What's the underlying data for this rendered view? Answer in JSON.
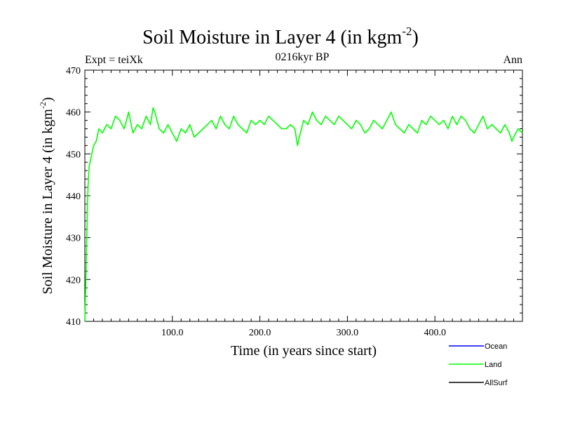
{
  "chart_data": {
    "type": "line",
    "title_main": "Soil Moisture in Layer 4 (in kgm",
    "title_sup": "-2",
    "title_close": ")",
    "subtitle_left": "Expt = teiXk",
    "subtitle_center": "0216kyr BP",
    "subtitle_right": "Ann",
    "xlabel": "Time (in years since start)",
    "ylabel_main": "Soil Moisture in Layer 4 (in kgm",
    "ylabel_sup": "-2",
    "ylabel_close": ")",
    "xlim": [
      0,
      500
    ],
    "ylim": [
      410,
      470
    ],
    "x_ticks": [
      100,
      200,
      300,
      400
    ],
    "x_tick_labels": [
      "100.0",
      "200.0",
      "300.0",
      "400.0"
    ],
    "y_ticks": [
      410,
      420,
      430,
      440,
      450,
      460,
      470
    ],
    "y_tick_labels": [
      "410",
      "420",
      "430",
      "440",
      "450",
      "460",
      "470"
    ],
    "legend": {
      "placement": "bottom-right",
      "entries": [
        {
          "name": "Ocean",
          "color": "#0000ff"
        },
        {
          "name": "Land",
          "color": "#00ff00"
        },
        {
          "name": "AllSurf",
          "color": "#000000"
        }
      ]
    },
    "series": [
      {
        "name": "Land",
        "color": "#00ff00",
        "x": [
          0,
          1,
          2,
          3,
          4,
          5,
          7,
          10,
          13,
          16,
          20,
          25,
          30,
          35,
          40,
          45,
          50,
          55,
          60,
          65,
          70,
          75,
          78,
          80,
          85,
          90,
          95,
          100,
          105,
          110,
          115,
          120,
          125,
          130,
          135,
          140,
          145,
          150,
          155,
          160,
          165,
          170,
          175,
          180,
          185,
          190,
          195,
          200,
          205,
          210,
          215,
          220,
          225,
          230,
          235,
          240,
          243,
          245,
          250,
          255,
          260,
          265,
          270,
          275,
          280,
          285,
          290,
          295,
          300,
          305,
          310,
          315,
          320,
          325,
          330,
          335,
          340,
          345,
          350,
          355,
          360,
          365,
          370,
          375,
          380,
          385,
          390,
          395,
          400,
          405,
          410,
          415,
          420,
          425,
          430,
          435,
          440,
          445,
          450,
          455,
          460,
          465,
          470,
          475,
          480,
          485,
          488,
          490,
          495,
          500
        ],
        "y": [
          410,
          418,
          428,
          438,
          444,
          447,
          449,
          452,
          453,
          456,
          455,
          457,
          456,
          459,
          458,
          456,
          460,
          455,
          457,
          456,
          459,
          457,
          461,
          460,
          456,
          455,
          457,
          455,
          453,
          456,
          455,
          457,
          454,
          455,
          456,
          457,
          458,
          456,
          459,
          457,
          456,
          459,
          457,
          456,
          455,
          458,
          457,
          458,
          457,
          459,
          458,
          457,
          456,
          456,
          457,
          456,
          452,
          454,
          458,
          457,
          460,
          458,
          457,
          459,
          458,
          457,
          459,
          458,
          457,
          456,
          458,
          457,
          455,
          456,
          458,
          457,
          456,
          458,
          460,
          457,
          456,
          455,
          457,
          456,
          455,
          458,
          457,
          459,
          458,
          457,
          458,
          456,
          459,
          457,
          459,
          458,
          456,
          455,
          457,
          459,
          456,
          457,
          456,
          455,
          457,
          455,
          453,
          454,
          456,
          455
        ]
      }
    ]
  }
}
